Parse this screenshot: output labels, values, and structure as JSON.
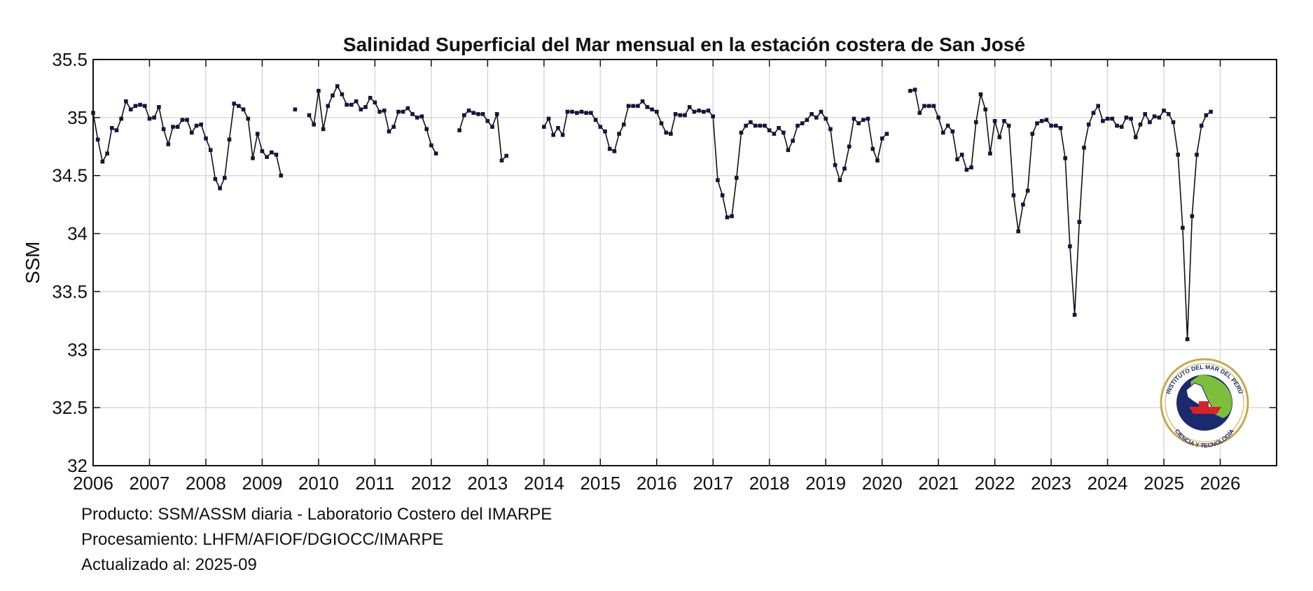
{
  "chart_data": {
    "type": "line",
    "title": "Salinidad Superficial del Mar mensual en la estación costera de San José",
    "xlabel": "",
    "ylabel": "SSM",
    "xlim": [
      2006,
      2027
    ],
    "ylim": [
      32,
      35.5
    ],
    "x_ticks": [
      "2006",
      "2007",
      "2008",
      "2009",
      "2010",
      "2011",
      "2012",
      "2013",
      "2014",
      "2015",
      "2016",
      "2017",
      "2018",
      "2019",
      "2020",
      "2021",
      "2022",
      "2023",
      "2024",
      "2025",
      "2026"
    ],
    "y_ticks": [
      "32",
      "32.5",
      "33",
      "33.5",
      "34",
      "34.5",
      "35",
      "35.5"
    ],
    "grid": true,
    "line_color": "#111111",
    "marker_color": "#14143c",
    "series": [
      {
        "values": [
          35.04,
          34.81,
          34.62,
          34.69,
          34.91,
          34.89,
          34.99,
          35.14,
          35.07,
          35.1,
          35.11,
          35.1,
          34.99,
          35.0,
          35.09,
          34.9,
          34.77,
          34.92,
          34.92,
          34.98,
          34.98,
          34.87,
          34.93,
          34.94,
          34.82,
          34.72,
          34.47,
          34.39,
          34.48,
          34.81,
          35.12,
          35.1,
          35.07,
          34.99,
          34.65,
          34.86,
          34.71,
          34.66,
          34.7,
          34.68,
          34.5,
          null,
          null,
          35.07,
          null,
          null,
          35.02,
          34.94,
          35.23,
          34.9,
          35.1,
          35.19,
          35.27,
          35.2,
          35.11,
          35.11,
          35.14,
          35.07,
          35.09,
          35.17,
          35.13,
          35.05,
          35.06,
          34.88,
          34.92,
          35.05,
          35.05,
          35.08,
          35.03,
          35.0,
          35.01,
          34.9,
          34.76,
          34.69,
          null,
          null,
          null,
          null,
          34.89,
          35.02,
          35.06,
          35.04,
          35.03,
          35.03,
          34.97,
          34.92,
          35.03,
          34.63,
          34.67,
          null,
          null,
          null,
          null,
          null,
          null,
          null,
          34.92,
          34.99,
          34.85,
          34.91,
          34.85,
          35.05,
          35.05,
          35.04,
          35.05,
          35.04,
          35.04,
          34.98,
          34.92,
          34.88,
          34.73,
          34.71,
          34.86,
          34.94,
          35.1,
          35.1,
          35.1,
          35.14,
          35.09,
          35.07,
          35.05,
          34.95,
          34.87,
          34.86,
          35.03,
          35.02,
          35.02,
          35.09,
          35.05,
          35.06,
          35.05,
          35.06,
          35.01,
          34.46,
          34.33,
          34.14,
          34.15,
          34.48,
          34.87,
          34.93,
          34.96,
          34.93,
          34.93,
          34.93,
          34.89,
          34.86,
          34.91,
          34.87,
          34.72,
          34.8,
          34.93,
          34.95,
          34.98,
          35.03,
          35.0,
          35.05,
          34.99,
          34.9,
          34.59,
          34.46,
          34.56,
          34.75,
          34.99,
          34.95,
          34.98,
          34.99,
          34.73,
          34.63,
          34.82,
          34.86,
          null,
          null,
          null,
          null,
          35.23,
          35.24,
          35.04,
          35.1,
          35.1,
          35.1,
          35.0,
          34.87,
          34.93,
          34.88,
          34.64,
          34.68,
          34.55,
          34.57,
          34.96,
          35.2,
          35.07,
          34.69,
          34.97,
          34.83,
          34.97,
          34.93,
          34.33,
          34.02,
          34.25,
          34.37,
          34.86,
          34.95,
          34.97,
          34.98,
          34.93,
          34.93,
          34.91,
          34.65,
          33.89,
          33.3,
          34.1,
          34.74,
          34.94,
          35.04,
          35.1,
          34.97,
          34.99,
          34.99,
          34.93,
          34.92,
          35.0,
          34.99,
          34.83,
          34.94,
          35.03,
          34.96,
          35.01,
          35.0,
          35.06,
          35.03,
          34.96,
          34.68,
          34.05,
          33.09,
          34.15,
          34.68,
          34.93,
          35.02,
          35.05
        ]
      }
    ]
  },
  "footer": {
    "line1": "Producto: SSM/ASSM diaria - Laboratorio Costero del IMARPE",
    "line2": "Procesamiento: LHFM/AFIOF/DGIOCC/IMARPE",
    "line3": "Actualizado al: 2025-09"
  },
  "logo": {
    "text_top": "INSTITUTO DEL MAR DEL PERÚ",
    "text_bottom": "CIENCIA Y TECNOLOGÍA",
    "ring_color": "#c9a84c",
    "inner_color": "#1a2a6c",
    "land_color": "#7cbf3c",
    "accent_color": "#d6232a"
  }
}
